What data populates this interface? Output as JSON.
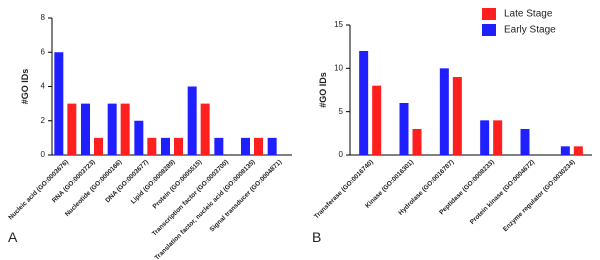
{
  "chart_data": [
    {
      "type": "bar",
      "panel": "A",
      "ylabel": "#GO IDs",
      "categories": [
        "Nucleic acid (GO:0003676)",
        "RNA (GO:0003723)",
        "Nucleotide (GO:0000166)",
        "DNA (GO:0003677)",
        "Lipid (GO:0008289)",
        "Protein (GO:0005515)",
        "Transcription factor (GO:0003700)",
        "Translation factor, nucleic acid (GO:0008135)",
        "Signal transducer (GO:0004871)"
      ],
      "series": [
        {
          "name": "Early Stage",
          "color": "#1f1fff",
          "values": [
            6,
            3,
            3,
            2,
            1,
            4,
            1,
            1,
            1
          ]
        },
        {
          "name": "Late Stage",
          "color": "#ff1f1f",
          "values": [
            3,
            1,
            3,
            1,
            1,
            3,
            0,
            1,
            0
          ]
        }
      ],
      "ylim": [
        0,
        8
      ],
      "yticks": [
        0,
        2,
        4,
        6,
        8
      ],
      "grid": false
    },
    {
      "type": "bar",
      "panel": "B",
      "ylabel": "#GO IDs",
      "categories": [
        "Transferase (GO:0016740)",
        "Kinase (GO:0016301)",
        "Hydrolase (GO:0016787)",
        "Peptidase (GO:0008233)",
        "Protein kinase (GO:0004672)",
        "Enzyme regulator (GO:0030234)"
      ],
      "series": [
        {
          "name": "Early Stage",
          "color": "#1f1fff",
          "values": [
            12,
            6,
            10,
            4,
            3,
            1
          ]
        },
        {
          "name": "Late Stage",
          "color": "#ff1f1f",
          "values": [
            8,
            3,
            9,
            4,
            0,
            1
          ]
        }
      ],
      "ylim": [
        0,
        15
      ],
      "yticks": [
        0,
        5,
        10,
        15
      ],
      "grid": false,
      "legend": "top-right"
    }
  ]
}
